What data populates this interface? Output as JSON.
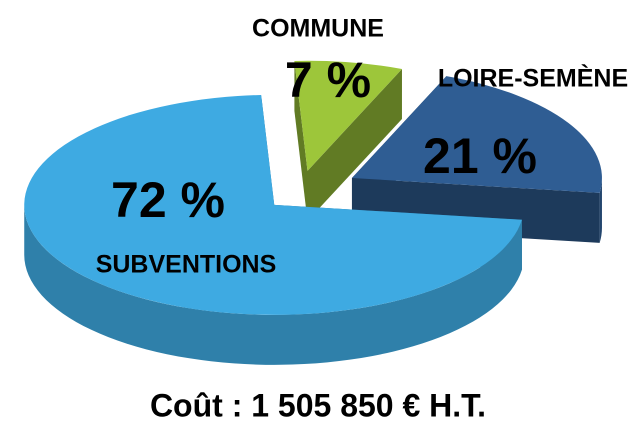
{
  "chart_data": {
    "type": "pie",
    "categories": [
      "COMMUNE",
      "LOIRE-SEMÈNE",
      "SUBVENTIONS"
    ],
    "values": [
      7,
      21,
      72
    ],
    "value_labels": [
      "7 %",
      "21 %",
      "72 %"
    ],
    "colors": [
      "#9dc63a",
      "#2f5d93",
      "#3eaae2"
    ],
    "annotation": "Coût : 1 505 850 € H.T."
  }
}
